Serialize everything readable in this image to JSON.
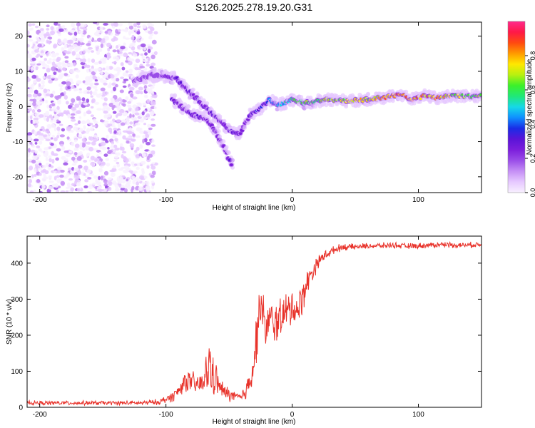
{
  "title": "S126.2025.278.19.20.G31",
  "chart_data": [
    {
      "type": "heatmap",
      "xlabel": "Height of straight line (km)",
      "ylabel": "Frequency (Hz)",
      "xlim": [
        -210,
        150
      ],
      "ylim": [
        -24.5,
        24
      ],
      "xticks": [
        -200,
        -100,
        0,
        100
      ],
      "yticks": [
        -20,
        -10,
        0,
        10,
        20
      ],
      "colorbar": {
        "label": "Normalized spectral amplitude",
        "range": [
          0,
          1
        ],
        "ticks": [
          "0.0",
          "0.2",
          "0.4",
          "0.6",
          "0.8"
        ],
        "tick_values": [
          0,
          0.2,
          0.4,
          0.6,
          0.8
        ],
        "colors": [
          "#f8f0ff",
          "#e6c8ff",
          "#c58ff5",
          "#9a4de8",
          "#7c1fdc",
          "#5a14d8",
          "#1a2ce6",
          "#0f8fff",
          "#16d9e8",
          "#20e878",
          "#3cf02a",
          "#b8f010",
          "#ffe800",
          "#ff9a00",
          "#ff4a10",
          "#ff1848",
          "#ff2a8c"
        ]
      },
      "ridge": {
        "description": "dominant frequency track vs height",
        "height_km": [
          -125,
          -110,
          -100,
          -92,
          -85,
          -75,
          -65,
          -55,
          -48,
          -42,
          -38,
          -34,
          -30,
          -24,
          -18,
          -12,
          -5,
          0,
          10,
          20,
          30,
          45,
          60,
          70,
          80,
          85,
          95,
          105,
          115,
          125,
          135,
          150
        ],
        "frequency_hz": [
          7.5,
          9.0,
          8.5,
          8.0,
          5.5,
          2.0,
          -1.5,
          -5.0,
          -7.0,
          -8.0,
          -5.5,
          -3.0,
          -1.5,
          0.0,
          2.0,
          0.5,
          1.0,
          2.0,
          1.0,
          1.5,
          2.0,
          1.5,
          2.0,
          2.5,
          3.0,
          3.5,
          2.0,
          3.0,
          2.5,
          3.0,
          3.0,
          3.0
        ],
        "amplitude": [
          0.15,
          0.2,
          0.25,
          0.3,
          0.3,
          0.3,
          0.3,
          0.25,
          0.3,
          0.3,
          0.25,
          0.3,
          0.35,
          0.35,
          0.4,
          0.45,
          0.5,
          0.55,
          0.6,
          0.6,
          0.65,
          0.7,
          0.7,
          0.75,
          0.8,
          0.85,
          0.8,
          0.75,
          0.8,
          0.7,
          0.65,
          0.65
        ]
      },
      "secondary_branch": {
        "height_km": [
          -95,
          -88,
          -80,
          -70,
          -62,
          -55,
          -50,
          -47
        ],
        "frequency_hz": [
          2.0,
          0.0,
          -2.0,
          -3.5,
          -6.0,
          -11.0,
          -15.0,
          -17.5
        ],
        "amplitude": [
          0.3,
          0.3,
          0.3,
          0.3,
          0.25,
          0.25,
          0.3,
          0.3
        ]
      },
      "noise_region_km": [
        -210,
        -108
      ]
    },
    {
      "type": "line",
      "xlabel": "Height of straight line (km)",
      "ylabel": "SNR (10 * v/v)",
      "xlim": [
        -210,
        150
      ],
      "ylim": [
        0,
        475
      ],
      "xticks": [
        -200,
        -100,
        0,
        100
      ],
      "yticks": [
        0,
        100,
        200,
        300,
        400
      ],
      "series": [
        {
          "name": "SNR",
          "color": "#e8322a",
          "x": [
            -210,
            -180,
            -150,
            -120,
            -105,
            -95,
            -90,
            -85,
            -80,
            -75,
            -70,
            -65,
            -62,
            -60,
            -58,
            -55,
            -50,
            -45,
            -40,
            -35,
            -30,
            -27,
            -25,
            -22,
            -18,
            -14,
            -10,
            -5,
            0,
            5,
            10,
            15,
            20,
            25,
            30,
            35,
            40,
            50,
            60,
            70,
            80,
            90,
            100,
            110,
            120,
            130,
            140,
            150
          ],
          "y": [
            12,
            12,
            12,
            12,
            15,
            30,
            45,
            75,
            70,
            60,
            70,
            120,
            85,
            75,
            60,
            45,
            35,
            30,
            25,
            60,
            130,
            240,
            300,
            220,
            240,
            230,
            250,
            260,
            280,
            270,
            330,
            370,
            400,
            420,
            430,
            440,
            445,
            445,
            448,
            448,
            450,
            447,
            448,
            450,
            452,
            450,
            450,
            452
          ],
          "noise_amplitude": [
            6,
            6,
            6,
            6,
            8,
            15,
            20,
            30,
            30,
            30,
            40,
            90,
            55,
            40,
            35,
            25,
            20,
            15,
            15,
            40,
            60,
            70,
            70,
            70,
            60,
            60,
            60,
            55,
            55,
            50,
            45,
            30,
            20,
            15,
            12,
            10,
            10,
            8,
            8,
            8,
            8,
            8,
            8,
            8,
            8,
            8,
            8,
            8
          ]
        }
      ]
    }
  ]
}
